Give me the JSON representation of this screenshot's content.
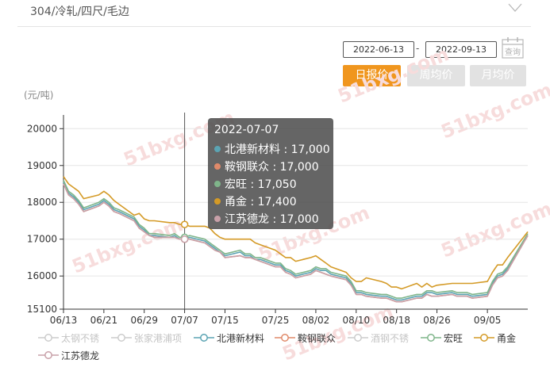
{
  "header": {
    "title": "304/冷轧/四尺/毛边"
  },
  "filters": {
    "start_date": "2022-06-13",
    "end_date": "2022-09-13",
    "separator": "-",
    "query_label": "查询"
  },
  "tabs": [
    {
      "label": "日报价",
      "active": true
    },
    {
      "label": "周均价",
      "active": false
    },
    {
      "label": "月均价",
      "active": false
    }
  ],
  "tooltip": {
    "date": "2022-07-07",
    "rows": [
      {
        "name": "北港新材料",
        "value": "17,000",
        "color": "#5ba4b3"
      },
      {
        "name": "鞍钢联众",
        "value": "17,000",
        "color": "#e08a6a"
      },
      {
        "name": "宏旺",
        "value": "17,050",
        "color": "#7fb58a"
      },
      {
        "name": "甬金",
        "value": "17,400",
        "color": "#d49a26"
      },
      {
        "name": "江苏德龙",
        "value": "17,000",
        "color": "#c8a0a8"
      }
    ]
  },
  "legend": [
    {
      "name": "太钢不锈",
      "color": "#cccccc",
      "active": false
    },
    {
      "name": "张家港浦项",
      "color": "#cccccc",
      "active": false
    },
    {
      "name": "北港新材料",
      "color": "#5ba4b3",
      "active": true
    },
    {
      "name": "鞍钢联众",
      "color": "#e08a6a",
      "active": true
    },
    {
      "name": "酒钢不锈",
      "color": "#cccccc",
      "active": false
    },
    {
      "name": "宏旺",
      "color": "#7fb58a",
      "active": true
    },
    {
      "name": "甬金",
      "color": "#d49a26",
      "active": true
    },
    {
      "name": "江苏德龙",
      "color": "#c8a0a8",
      "active": true
    }
  ],
  "chart_data": {
    "type": "line",
    "ylabel": "(元/吨)",
    "ylim": [
      15100,
      20200
    ],
    "yticks": [
      15100,
      16000,
      17000,
      18000,
      19000,
      20000
    ],
    "xticks": [
      "06/13",
      "06/21",
      "06/29",
      "07/07",
      "07/15",
      "07/25",
      "08/02",
      "08/10",
      "08/18",
      "08/26",
      "09/05"
    ],
    "x": [
      "06/13",
      "06/14",
      "06/15",
      "06/16",
      "06/17",
      "06/20",
      "06/21",
      "06/22",
      "06/23",
      "06/24",
      "06/27",
      "06/28",
      "06/29",
      "06/30",
      "07/01",
      "07/04",
      "07/05",
      "07/06",
      "07/07",
      "07/08",
      "07/11",
      "07/12",
      "07/13",
      "07/14",
      "07/15",
      "07/18",
      "07/19",
      "07/20",
      "07/21",
      "07/22",
      "07/25",
      "07/26",
      "07/27",
      "07/28",
      "07/29",
      "08/01",
      "08/02",
      "08/03",
      "08/04",
      "08/05",
      "08/08",
      "08/09",
      "08/10",
      "08/11",
      "08/12",
      "08/15",
      "08/16",
      "08/17",
      "08/18",
      "08/19",
      "08/22",
      "08/23",
      "08/24",
      "08/25",
      "08/26",
      "08/29",
      "08/30",
      "08/31",
      "09/01",
      "09/02",
      "09/05",
      "09/06",
      "09/07",
      "09/08",
      "09/09",
      "09/13"
    ],
    "grid": "horizontal",
    "crosshair_date": "07/07",
    "series": [
      {
        "name": "北港新材料",
        "color": "#5ba4b3",
        "values": [
          18550,
          18250,
          18150,
          18000,
          17800,
          17950,
          18050,
          17950,
          17800,
          17750,
          17550,
          17350,
          17250,
          17100,
          17100,
          17050,
          17100,
          17000,
          17000,
          17050,
          16950,
          16850,
          16750,
          16650,
          16550,
          16650,
          16550,
          16550,
          16450,
          16450,
          16300,
          16300,
          16150,
          16100,
          16000,
          16100,
          16200,
          16150,
          16150,
          16050,
          15950,
          15800,
          15550,
          15550,
          15500,
          15450,
          15450,
          15400,
          15350,
          15350,
          15450,
          15450,
          15550,
          15550,
          15500,
          15550,
          15500,
          15500,
          15500,
          15450,
          15500,
          15800,
          16000,
          16050,
          16200,
          17100
        ]
      },
      {
        "name": "鞍钢联众",
        "color": "#e08a6a",
        "values": [
          18500,
          18200,
          18100,
          17950,
          17750,
          17900,
          18000,
          17900,
          17750,
          17700,
          17500,
          17300,
          17200,
          17100,
          17050,
          17050,
          17050,
          17000,
          17000,
          17000,
          16900,
          16800,
          16700,
          16650,
          16500,
          16550,
          16500,
          16500,
          16450,
          16400,
          16250,
          16250,
          16100,
          16050,
          15950,
          16050,
          16150,
          16100,
          16050,
          16000,
          15900,
          15750,
          15500,
          15500,
          15450,
          15400,
          15400,
          15350,
          15300,
          15300,
          15400,
          15400,
          15500,
          15450,
          15450,
          15500,
          15450,
          15450,
          15450,
          15400,
          15450,
          15750,
          15950,
          16000,
          16150,
          17100
        ]
      },
      {
        "name": "宏旺",
        "color": "#7fb58a",
        "values": [
          18600,
          18300,
          18200,
          18050,
          17850,
          18000,
          18100,
          18000,
          17850,
          17800,
          17600,
          17400,
          17300,
          17150,
          17150,
          17100,
          17150,
          17050,
          17050,
          17100,
          17000,
          16900,
          16800,
          16700,
          16600,
          16700,
          16600,
          16600,
          16500,
          16500,
          16350,
          16350,
          16200,
          16150,
          16050,
          16150,
          16250,
          16200,
          16200,
          16100,
          16000,
          15850,
          15600,
          15600,
          15550,
          15500,
          15500,
          15450,
          15400,
          15400,
          15500,
          15500,
          15600,
          15600,
          15550,
          15600,
          15550,
          15550,
          15550,
          15500,
          15550,
          15850,
          16050,
          16100,
          16250,
          17150
        ]
      },
      {
        "name": "甬金",
        "color": "#d49a26",
        "values": [
          18700,
          18500,
          18400,
          18300,
          18100,
          18200,
          18300,
          18200,
          18050,
          17950,
          17650,
          17700,
          17550,
          17500,
          17500,
          17450,
          17450,
          17400,
          17400,
          17350,
          17350,
          17300,
          17150,
          17050,
          17000,
          17000,
          17000,
          17000,
          16900,
          16850,
          16700,
          16600,
          16500,
          16500,
          16400,
          16500,
          16550,
          16450,
          16350,
          16250,
          16100,
          15950,
          15850,
          15850,
          15950,
          15850,
          15800,
          15700,
          15700,
          15650,
          15800,
          15700,
          15800,
          15700,
          15750,
          15800,
          15800,
          15800,
          15800,
          15800,
          15850,
          16100,
          16300,
          16300,
          16500,
          17200
        ]
      },
      {
        "name": "江苏德龙",
        "color": "#c8a0a8",
        "values": [
          18500,
          18200,
          18100,
          17950,
          17750,
          17900,
          18000,
          17900,
          17750,
          17700,
          17500,
          17300,
          17200,
          17100,
          17050,
          17050,
          17050,
          17000,
          17000,
          17000,
          16900,
          16800,
          16700,
          16650,
          16500,
          16550,
          16500,
          16500,
          16450,
          16400,
          16250,
          16250,
          16100,
          16050,
          15950,
          16050,
          16150,
          16100,
          16050,
          16000,
          15900,
          15750,
          15500,
          15500,
          15450,
          15400,
          15400,
          15350,
          15300,
          15300,
          15400,
          15400,
          15500,
          15450,
          15450,
          15500,
          15450,
          15450,
          15450,
          15400,
          15450,
          15750,
          15950,
          16000,
          16150,
          17100
        ]
      }
    ]
  }
}
